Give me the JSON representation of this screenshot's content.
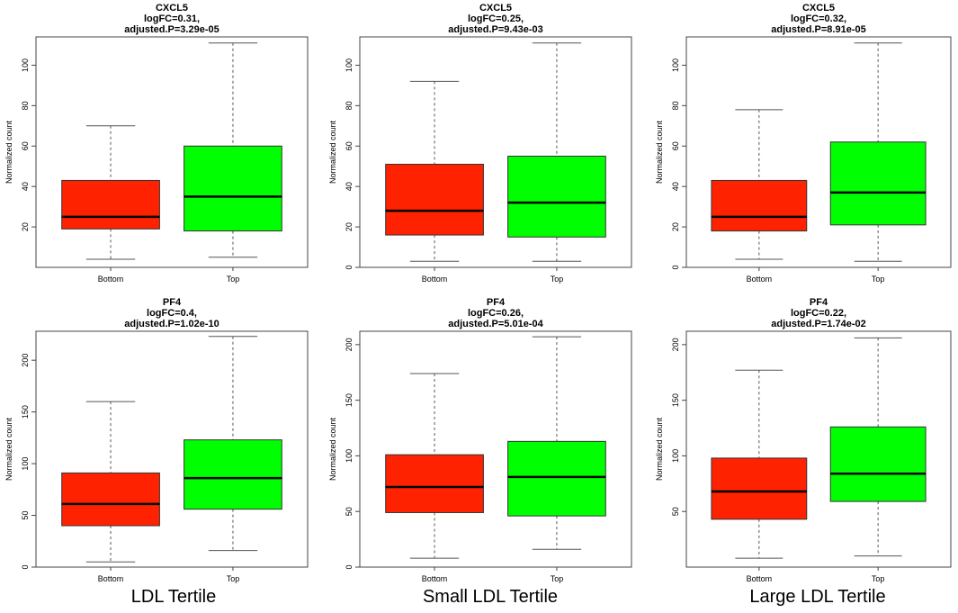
{
  "colors": {
    "bottom": "#ff2200",
    "top": "#00ff00",
    "whisker": "#555555",
    "frame": "#444444"
  },
  "column_labels": [
    "LDL Tertile",
    "Small LDL Tertile",
    "Large LDL Tertile"
  ],
  "chart_data": [
    {
      "type": "boxplot",
      "title": "CXCL5",
      "subtitle1": "logFC=0.31,",
      "subtitle2": "adjusted.P=3.29e-05",
      "ylabel": "Normalized count",
      "categories": [
        "Bottom",
        "Top"
      ],
      "ylim": [
        0,
        114
      ],
      "yticks": [
        20,
        40,
        60,
        80,
        100
      ],
      "boxes": [
        {
          "min": 4,
          "q1": 19,
          "median": 25,
          "q3": 43,
          "max": 70
        },
        {
          "min": 5,
          "q1": 18,
          "median": 35,
          "q3": 60,
          "max": 111
        }
      ]
    },
    {
      "type": "boxplot",
      "title": "CXCL5",
      "subtitle1": "logFC=0.25,",
      "subtitle2": "adjusted.P=9.43e-03",
      "ylabel": "Normalized count",
      "categories": [
        "Bottom",
        "Top"
      ],
      "ylim": [
        0,
        114
      ],
      "yticks": [
        0,
        20,
        40,
        60,
        80,
        100
      ],
      "boxes": [
        {
          "min": 3,
          "q1": 16,
          "median": 28,
          "q3": 51,
          "max": 92
        },
        {
          "min": 3,
          "q1": 15,
          "median": 32,
          "q3": 55,
          "max": 111
        }
      ]
    },
    {
      "type": "boxplot",
      "title": "CXCL5",
      "subtitle1": "logFC=0.32,",
      "subtitle2": "adjusted.P=8.91e-05",
      "ylabel": "Normalized count",
      "categories": [
        "Bottom",
        "Top"
      ],
      "ylim": [
        0,
        114
      ],
      "yticks": [
        0,
        20,
        40,
        60,
        80,
        100
      ],
      "boxes": [
        {
          "min": 4,
          "q1": 18,
          "median": 25,
          "q3": 43,
          "max": 78
        },
        {
          "min": 3,
          "q1": 21,
          "median": 37,
          "q3": 62,
          "max": 111
        }
      ]
    },
    {
      "type": "boxplot",
      "title": "PF4",
      "subtitle1": "logFC=0.4,",
      "subtitle2": "adjusted.P=1.02e-10",
      "ylabel": "Normalized count",
      "categories": [
        "Bottom",
        "Top"
      ],
      "ylim": [
        0,
        228
      ],
      "yticks": [
        0,
        50,
        100,
        150,
        200
      ],
      "boxes": [
        {
          "min": 5,
          "q1": 40,
          "median": 61,
          "q3": 91,
          "max": 160
        },
        {
          "min": 16,
          "q1": 56,
          "median": 86,
          "q3": 123,
          "max": 223
        }
      ]
    },
    {
      "type": "boxplot",
      "title": "PF4",
      "subtitle1": "logFC=0.26,",
      "subtitle2": "adjusted.P=5.01e-04",
      "ylabel": "Normalized count",
      "categories": [
        "Bottom",
        "Top"
      ],
      "ylim": [
        0,
        212
      ],
      "yticks": [
        0,
        50,
        100,
        150,
        200
      ],
      "boxes": [
        {
          "min": 8,
          "q1": 49,
          "median": 72,
          "q3": 101,
          "max": 174
        },
        {
          "min": 16,
          "q1": 46,
          "median": 81,
          "q3": 113,
          "max": 207
        }
      ]
    },
    {
      "type": "boxplot",
      "title": "PF4",
      "subtitle1": "logFC=0.22,",
      "subtitle2": "adjusted.P=1.74e-02",
      "ylabel": "Normalized count",
      "categories": [
        "Bottom",
        "Top"
      ],
      "ylim": [
        0,
        212
      ],
      "yticks": [
        50,
        100,
        150,
        200
      ],
      "boxes": [
        {
          "min": 8,
          "q1": 43,
          "median": 68,
          "q3": 98,
          "max": 177
        },
        {
          "min": 10,
          "q1": 59,
          "median": 84,
          "q3": 126,
          "max": 206
        }
      ]
    }
  ]
}
